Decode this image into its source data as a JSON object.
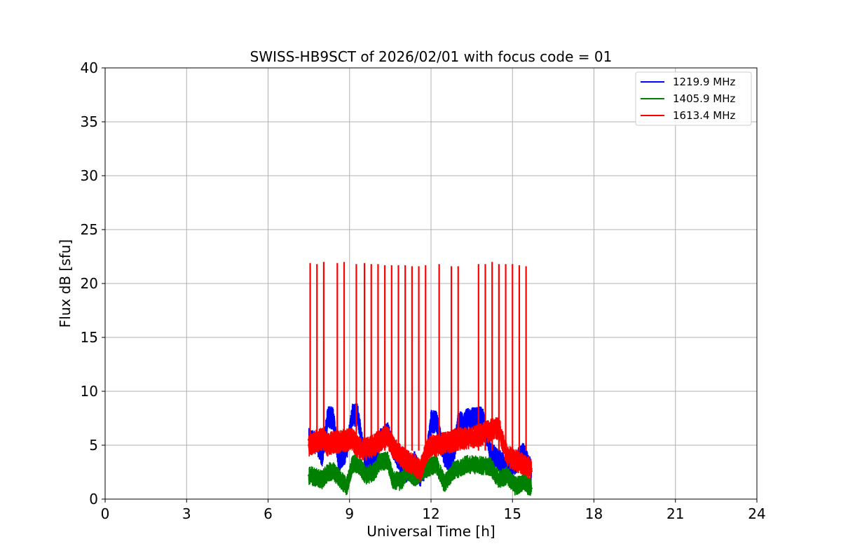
{
  "chart_data": {
    "type": "line",
    "title": "SWISS-HB9SCT of 2026/02/01 with focus code = 01",
    "xlabel": "Universal Time [h]",
    "ylabel": "Flux dB [sfu]",
    "xlim": [
      0,
      24
    ],
    "ylim": [
      0,
      40
    ],
    "xticks": [
      0,
      3,
      6,
      9,
      12,
      15,
      18,
      21,
      24
    ],
    "yticks": [
      0,
      5,
      10,
      15,
      20,
      25,
      30,
      35,
      40
    ],
    "grid": true,
    "legend_position": "top-right",
    "series": [
      {
        "name": "1219.9 MHz",
        "color": "#0000ff",
        "x": [
          7.5,
          7.8,
          8.0,
          8.2,
          8.4,
          8.6,
          8.9,
          9.1,
          9.3,
          9.6,
          9.9,
          10.1,
          10.4,
          10.6,
          10.9,
          11.1,
          11.4,
          11.6,
          11.8,
          12.0,
          12.2,
          12.5,
          12.8,
          13.0,
          13.3,
          13.6,
          13.9,
          14.2,
          14.5,
          14.8,
          15.1,
          15.4,
          15.7
        ],
        "values": [
          5.5,
          5.2,
          4.0,
          7.6,
          7.5,
          3.6,
          4.5,
          7.8,
          7.8,
          3.0,
          3.6,
          5.4,
          6.2,
          4.8,
          3.2,
          2.6,
          3.4,
          2.2,
          3.0,
          7.2,
          7.1,
          4.0,
          3.4,
          7.0,
          7.3,
          7.5,
          7.5,
          4.2,
          3.6,
          2.8,
          3.4,
          4.2,
          2.6
        ]
      },
      {
        "name": "1405.9 MHz",
        "color": "#008000",
        "x": [
          7.5,
          7.8,
          8.0,
          8.2,
          8.4,
          8.6,
          8.9,
          9.1,
          9.3,
          9.6,
          9.9,
          10.1,
          10.4,
          10.6,
          10.9,
          11.1,
          11.4,
          11.6,
          11.8,
          12.0,
          12.2,
          12.5,
          12.8,
          13.0,
          13.3,
          13.6,
          13.9,
          14.2,
          14.5,
          14.8,
          15.1,
          15.4,
          15.7
        ],
        "values": [
          2.2,
          2.0,
          1.8,
          2.5,
          2.6,
          2.0,
          1.2,
          3.2,
          3.3,
          2.2,
          2.5,
          3.4,
          3.6,
          1.8,
          1.6,
          2.6,
          2.0,
          2.4,
          2.8,
          3.0,
          3.2,
          1.4,
          2.6,
          2.8,
          3.2,
          3.2,
          3.1,
          3.0,
          1.8,
          2.2,
          1.2,
          1.6,
          1.0
        ]
      },
      {
        "name": "1613.4 MHz",
        "color": "#ff0000",
        "x": [
          7.5,
          7.8,
          8.0,
          8.2,
          8.4,
          8.6,
          8.9,
          9.1,
          9.3,
          9.6,
          9.9,
          10.1,
          10.4,
          10.6,
          10.9,
          11.1,
          11.4,
          11.6,
          11.8,
          12.0,
          12.2,
          12.5,
          12.8,
          13.0,
          13.3,
          13.6,
          13.9,
          14.2,
          14.5,
          14.8,
          15.1,
          15.4,
          15.7
        ],
        "values": [
          5.0,
          5.4,
          5.6,
          5.0,
          5.3,
          5.3,
          5.5,
          5.6,
          4.8,
          4.6,
          5.0,
          5.4,
          5.8,
          4.8,
          4.0,
          3.6,
          3.2,
          2.6,
          4.2,
          5.0,
          5.0,
          5.2,
          5.4,
          5.6,
          5.6,
          5.8,
          6.0,
          6.4,
          6.6,
          4.0,
          3.6,
          3.2,
          2.8
        ]
      }
    ],
    "spikes_1613_4_mhz": {
      "x": [
        7.55,
        7.8,
        8.05,
        8.55,
        8.8,
        9.25,
        9.55,
        9.8,
        10.05,
        10.3,
        10.55,
        10.8,
        11.05,
        11.3,
        11.55,
        11.8,
        12.3,
        12.75,
        13.0,
        13.75,
        14.0,
        14.25,
        14.5,
        14.75,
        15.0,
        15.25,
        15.5
      ],
      "values": [
        21.9,
        21.8,
        22.0,
        21.9,
        22.0,
        21.8,
        21.9,
        21.8,
        21.8,
        21.7,
        21.7,
        21.7,
        21.7,
        21.6,
        21.6,
        21.7,
        21.8,
        21.6,
        21.6,
        21.8,
        21.8,
        22.0,
        21.8,
        21.8,
        21.8,
        21.7,
        21.6
      ]
    }
  }
}
